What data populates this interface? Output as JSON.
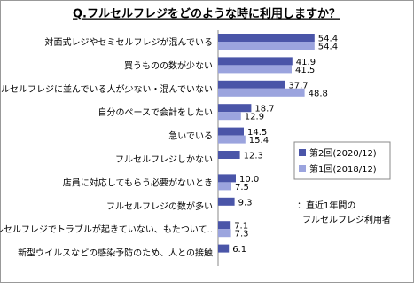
{
  "chart_data": {
    "type": "bar",
    "orientation": "horizontal",
    "title": "Q.フルセルフレジをどのような時に利用しますか？",
    "categories": [
      "対面式レジやセミセルフレジが混んでいる",
      "買うものの数が少ない",
      "フルセルフレジに並んでいる人が少ない・混んでいない",
      "自分のペースで会計をしたい",
      "急いでいる",
      "フルセルフレジしかない",
      "店員に対応してもらう必要がないとき",
      "フルセルフレジの数が多い",
      "フルセルフレジでトラブルが起きていない、もたついて..",
      "新型ウイルスなどの感染予防のため、人との接触"
    ],
    "series": [
      {
        "name": "第2回(2020/12)",
        "color": "#4a55a8",
        "values": [
          54.4,
          41.9,
          37.7,
          18.7,
          14.5,
          12.3,
          10.0,
          9.3,
          7.1,
          6.1
        ],
        "value_labels": [
          "54.4",
          "41.9",
          "37.7",
          "18.7",
          "14.5",
          "12.3",
          "10.0",
          "9.3",
          "7.1",
          "6.1"
        ]
      },
      {
        "name": "第1回(2018/12)",
        "color": "#9ba4de",
        "values": [
          54.4,
          41.5,
          48.8,
          12.9,
          15.4,
          null,
          7.5,
          null,
          7.3,
          null
        ],
        "value_labels": [
          "54.4",
          "41.5",
          "48.8",
          "12.9",
          "15.4",
          null,
          "7.5",
          null,
          "7.3",
          null
        ]
      }
    ],
    "notes": [
      "：直近1年間の",
      "フルセルフレジ利用者"
    ]
  }
}
